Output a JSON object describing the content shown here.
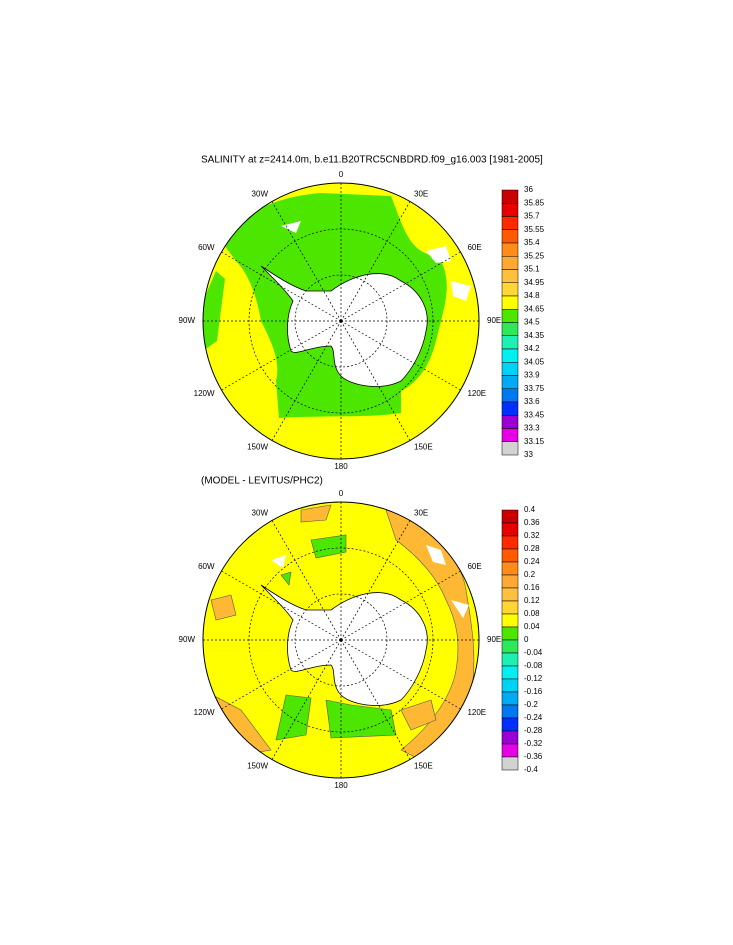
{
  "maps": [
    {
      "title": "SALINITY at z=2414.0m, b.e11.B20TRC5CNBDRD.f09_g16.003 [1981-2005]",
      "lon_labels": [
        "0",
        "30E",
        "60E",
        "90E",
        "120E",
        "150E",
        "180",
        "150W",
        "120W",
        "90W",
        "60W",
        "30W"
      ],
      "colorbar": {
        "labels": [
          36,
          35.85,
          35.7,
          35.55,
          35.4,
          35.25,
          35.1,
          34.95,
          34.8,
          34.65,
          34.5,
          34.35,
          34.2,
          34.05,
          33.9,
          33.75,
          33.6,
          33.45,
          33.3,
          33.15,
          33
        ],
        "colors": [
          "#c80000",
          "#e60000",
          "#ff2a00",
          "#ff5a00",
          "#ff8c1a",
          "#ffa833",
          "#ffc040",
          "#ffd633",
          "#ffff00",
          "#4ce600",
          "#2ee85a",
          "#1ef0b4",
          "#00f0f0",
          "#00d2f5",
          "#00aaf5",
          "#0078f0",
          "#0030ff",
          "#9a00d6",
          "#e600e6",
          "#d2d2d2",
          "#787878"
        ]
      }
    },
    {
      "title": "(MODEL - LEVITUS/PHC2)",
      "lon_labels": [
        "0",
        "30E",
        "60E",
        "90E",
        "120E",
        "150E",
        "180",
        "150W",
        "120W",
        "90W",
        "60W",
        "30W"
      ],
      "colorbar": {
        "labels": [
          0.4,
          0.36,
          0.32,
          0.28,
          0.24,
          0.2,
          0.16,
          0.12,
          0.08,
          0.04,
          0,
          -0.04,
          -0.08,
          -0.12,
          -0.16,
          -0.2,
          -0.24,
          -0.28,
          -0.32,
          -0.36,
          -0.4
        ],
        "colors": [
          "#c80000",
          "#e60000",
          "#ff2a00",
          "#ff5a00",
          "#ff8c1a",
          "#ffa833",
          "#ffc040",
          "#ffd633",
          "#ffff00",
          "#4ce600",
          "#2ee85a",
          "#1ef0b4",
          "#00f0f0",
          "#00d2f5",
          "#00aaf5",
          "#0078f0",
          "#0030ff",
          "#9a00d6",
          "#e600e6",
          "#d2d2d2",
          "#787878"
        ]
      }
    }
  ]
}
